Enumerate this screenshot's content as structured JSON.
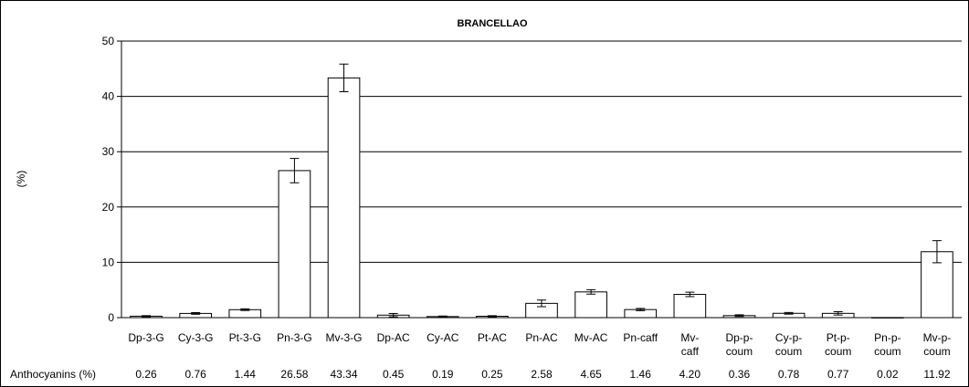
{
  "chart_data": {
    "type": "bar",
    "title": "BRANCELLAO",
    "ylabel": "(%)",
    "xlabel": "",
    "ylim": [
      0,
      50
    ],
    "yticks": [
      0,
      10,
      20,
      30,
      40,
      50
    ],
    "grid": true,
    "categories": [
      [
        "Dp-3-G"
      ],
      [
        "Cy-3-G"
      ],
      [
        "Pt-3-G"
      ],
      [
        "Pn-3-G"
      ],
      [
        "Mv-3-G"
      ],
      [
        "Dp-AC"
      ],
      [
        "Cy-AC"
      ],
      [
        "Pt-AC"
      ],
      [
        "Pn-AC"
      ],
      [
        "Mv-AC"
      ],
      [
        "Pn-caff"
      ],
      [
        "Mv-",
        "caff"
      ],
      [
        "Dp-p-",
        "coum"
      ],
      [
        "Cy-p-",
        "coum"
      ],
      [
        "Pt-p-",
        "coum"
      ],
      [
        "Pn-p-",
        "coum"
      ],
      [
        "Mv-p-",
        "coum"
      ]
    ],
    "values": [
      0.26,
      0.76,
      1.44,
      26.58,
      43.34,
      0.45,
      0.19,
      0.25,
      2.58,
      4.65,
      1.46,
      4.2,
      0.36,
      0.78,
      0.77,
      0.02,
      11.92
    ],
    "errors": [
      0.1,
      0.15,
      0.15,
      2.2,
      2.5,
      0.3,
      0.1,
      0.1,
      0.6,
      0.4,
      0.2,
      0.4,
      0.15,
      0.15,
      0.3,
      0.0,
      2.0
    ],
    "table": {
      "row_label": "Anthocyanins (%)",
      "values": [
        "0.26",
        "0.76",
        "1.44",
        "26.58",
        "43.34",
        "0.45",
        "0.19",
        "0.25",
        "2.58",
        "4.65",
        "1.46",
        "4.20",
        "0.36",
        "0.78",
        "0.77",
        "0.02",
        "11.92"
      ]
    }
  }
}
